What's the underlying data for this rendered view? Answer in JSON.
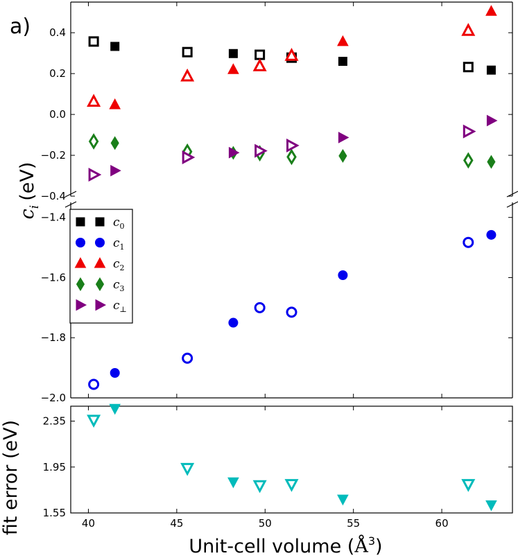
{
  "chart_data": {
    "type": "scatter",
    "panel_label": "a)",
    "xlabel": "Unit-cell volume",
    "xlabel_unit": "Å",
    "xlabel_exp": "3",
    "xlim": [
      39,
      64
    ],
    "x_ticks": [
      40,
      45,
      50,
      55,
      60
    ],
    "x": [
      40.3,
      41.5,
      45.6,
      48.2,
      49.7,
      51.5,
      54.4,
      61.5,
      62.8
    ],
    "filled": [
      false,
      true,
      false,
      true,
      false,
      false,
      true,
      false,
      true
    ],
    "top_panel": {
      "ylabel_symbol": "c",
      "ylabel_sub": "i",
      "ylabel_unit": "(eV)",
      "upper": {
        "ylim": [
          -0.4,
          0.55
        ],
        "y_ticks": [
          0.4,
          0.2,
          0.0,
          -0.2,
          -0.4
        ],
        "y_tick_labels": [
          "0.4",
          "0.2",
          "0.0",
          "−0.2",
          "−0.4"
        ]
      },
      "lower": {
        "ylim": [
          -2.0,
          -1.35
        ],
        "y_ticks": [
          -1.4,
          -1.6,
          -1.8,
          -2.0
        ],
        "y_tick_labels": [
          "−1.4",
          "−1.6",
          "−1.8",
          "−2.0"
        ]
      },
      "series": [
        {
          "name": "c0",
          "base": "c",
          "sub": "0",
          "marker": "square",
          "color": "#000000",
          "segment": "upper",
          "values": [
            0.357,
            0.333,
            0.305,
            0.298,
            0.292,
            0.278,
            0.26,
            0.232,
            0.217
          ]
        },
        {
          "name": "c1",
          "base": "c",
          "sub": "1",
          "marker": "circle",
          "color": "#0000ee",
          "segment": "lower",
          "values": [
            -1.955,
            -1.917,
            -1.868,
            -1.75,
            -1.7,
            -1.715,
            -1.592,
            -1.483,
            -1.458
          ]
        },
        {
          "name": "c2",
          "base": "c",
          "sub": "2",
          "marker": "triangle-up",
          "color": "#ee0000",
          "segment": "upper",
          "values": [
            0.063,
            0.048,
            0.187,
            0.22,
            0.237,
            0.288,
            0.357,
            0.41,
            0.505
          ]
        },
        {
          "name": "c3",
          "base": "c",
          "sub": "3",
          "marker": "diamond",
          "color": "#1a7f1a",
          "segment": "upper",
          "values": [
            -0.132,
            -0.14,
            -0.182,
            -0.188,
            -0.19,
            -0.208,
            -0.203,
            -0.225,
            -0.232
          ]
        },
        {
          "name": "c_perp",
          "base": "c",
          "sub": "⊥",
          "marker": "triangle-right",
          "color": "#800080",
          "segment": "upper",
          "values": [
            -0.295,
            -0.275,
            -0.21,
            -0.187,
            -0.178,
            -0.152,
            -0.113,
            -0.083,
            -0.03
          ]
        }
      ]
    },
    "bottom_panel": {
      "ylabel": "fit error (eV)",
      "ylim": [
        1.55,
        2.48
      ],
      "y_ticks": [
        2.35,
        1.95,
        1.55
      ],
      "y_tick_labels": [
        "2.35",
        "1.95",
        "1.55"
      ],
      "series": [
        {
          "name": "fit error",
          "marker": "triangle-down",
          "color": "#00bbbb",
          "values": [
            2.36,
            2.46,
            1.94,
            1.82,
            1.79,
            1.8,
            1.67,
            1.8,
            1.62
          ]
        }
      ]
    }
  }
}
